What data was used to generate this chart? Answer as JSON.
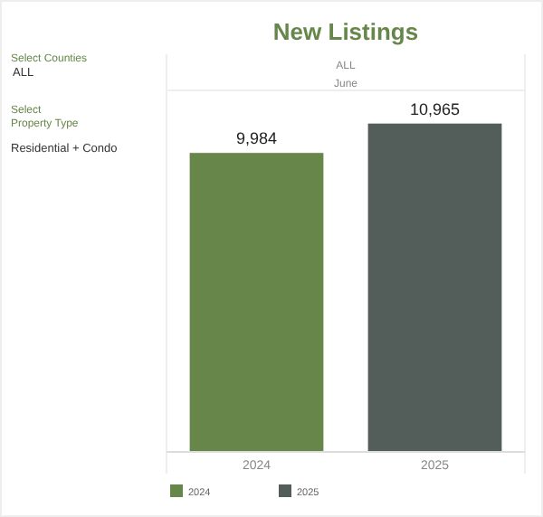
{
  "chart_data": {
    "type": "bar",
    "title": "New Listings",
    "categories": [
      "2024",
      "2025"
    ],
    "stacked": true,
    "series": [
      {
        "name": "2024",
        "color": "#67874a",
        "values": [
          9984,
          null
        ],
        "value_labels": [
          "9,984",
          null
        ]
      },
      {
        "name": "2025",
        "color": "#535d5a",
        "values": [
          null,
          10965
        ],
        "value_labels": [
          null,
          "10,965"
        ]
      }
    ],
    "legend": "bottom left",
    "annotations": [
      "Select Counties",
      "ALL",
      "Select\nProperty Type",
      "Residential + Condo",
      "ALL",
      "June"
    ]
  }
}
